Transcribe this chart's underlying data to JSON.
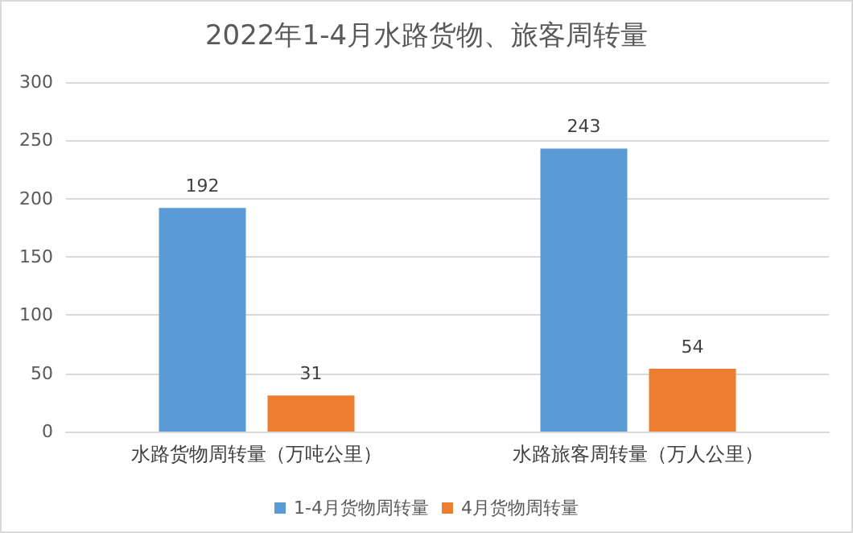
{
  "chart_data": {
    "type": "bar",
    "title": "2022年1-4月水路货物、旅客周转量",
    "categories": [
      "水路货物周转量（万吨公里）",
      "水路旅客周转量（万人公里）"
    ],
    "series": [
      {
        "name": "1-4月货物周转量",
        "color": "#5b9bd5",
        "values": [
          192,
          243
        ]
      },
      {
        "name": "4月货物周转量",
        "color": "#ed7d31",
        "values": [
          31,
          54
        ]
      }
    ],
    "ylim": [
      0,
      300
    ],
    "yticks": [
      0,
      50,
      100,
      150,
      200,
      250,
      300
    ],
    "grid": "y",
    "legend": "bottom",
    "data_labels": true
  }
}
